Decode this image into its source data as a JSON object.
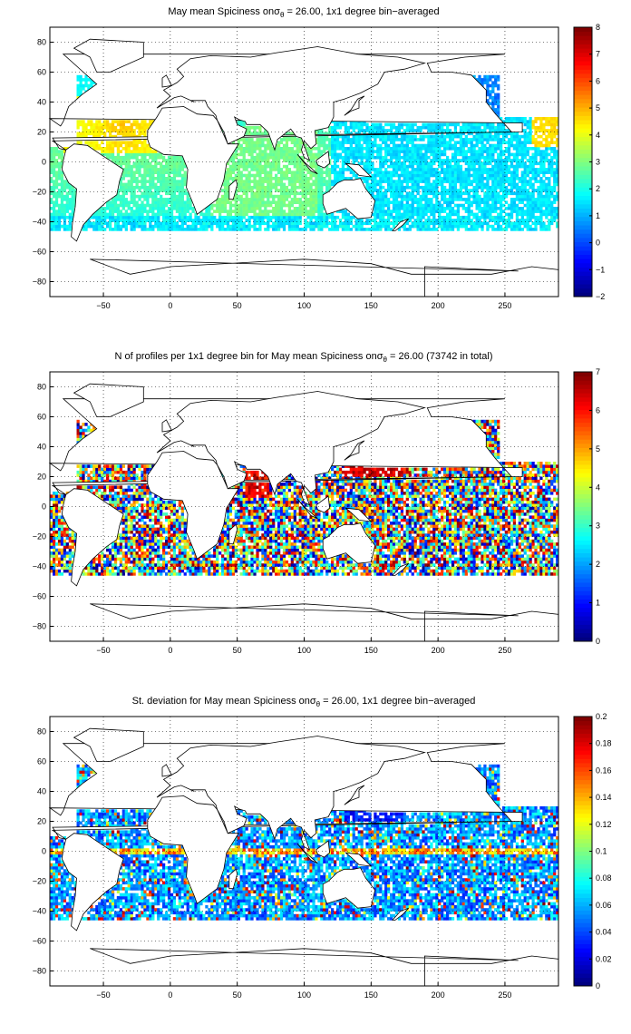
{
  "chart_data": [
    {
      "type": "heatmap",
      "title_prefix": "May mean Spiciness on",
      "title_symbol": "σ",
      "title_subscript": "θ",
      "title_suffix": " = 26.00, 1x1 degree bin−averaged",
      "x_ticks": [
        "−50",
        "0",
        "50",
        "100",
        "150",
        "200",
        "250"
      ],
      "x_tick_values": [
        -50,
        0,
        50,
        100,
        150,
        200,
        250
      ],
      "y_ticks": [
        "80",
        "60",
        "40",
        "20",
        "0",
        "−20",
        "−40",
        "−60",
        "−80"
      ],
      "y_tick_values": [
        80,
        60,
        40,
        20,
        0,
        -20,
        -40,
        -60,
        -80
      ],
      "xlim": [
        -90,
        290
      ],
      "ylim": [
        -90,
        90
      ],
      "grid": true,
      "colorbar": {
        "ticks": [
          "8",
          "7",
          "6",
          "5",
          "4",
          "3",
          "2",
          "1",
          "0",
          "−1",
          "−2"
        ],
        "tick_values": [
          8,
          7,
          6,
          5,
          4,
          3,
          2,
          1,
          0,
          -1,
          -2
        ],
        "range": [
          -2,
          8
        ],
        "colormap": "jet"
      }
    },
    {
      "type": "heatmap",
      "title_prefix": "N of profiles per 1x1 degree bin for May mean Spiciness on",
      "title_symbol": "σ",
      "title_subscript": "θ",
      "title_suffix": " = 26.00 (73742 in total)",
      "x_ticks": [
        "−50",
        "0",
        "50",
        "100",
        "150",
        "200",
        "250"
      ],
      "x_tick_values": [
        -50,
        0,
        50,
        100,
        150,
        200,
        250
      ],
      "y_ticks": [
        "80",
        "60",
        "40",
        "20",
        "0",
        "−20",
        "−40",
        "−60",
        "−80"
      ],
      "y_tick_values": [
        80,
        60,
        40,
        20,
        0,
        -20,
        -40,
        -60,
        -80
      ],
      "xlim": [
        -90,
        290
      ],
      "ylim": [
        -90,
        90
      ],
      "grid": true,
      "colorbar": {
        "ticks": [
          "7",
          "6",
          "5",
          "4",
          "3",
          "2",
          "1",
          "0"
        ],
        "tick_values": [
          7,
          6,
          5,
          4,
          3,
          2,
          1,
          0
        ],
        "range": [
          0,
          7
        ],
        "colormap": "jet"
      }
    },
    {
      "type": "heatmap",
      "title_prefix": "St. deviation for May mean Spiciness on",
      "title_symbol": "σ",
      "title_subscript": "θ",
      "title_suffix": " = 26.00, 1x1 degree bin−averaged",
      "x_ticks": [
        "−50",
        "0",
        "50",
        "100",
        "150",
        "200",
        "250"
      ],
      "x_tick_values": [
        -50,
        0,
        50,
        100,
        150,
        200,
        250
      ],
      "y_ticks": [
        "80",
        "60",
        "40",
        "20",
        "0",
        "−20",
        "−40",
        "−60",
        "−80"
      ],
      "y_tick_values": [
        80,
        60,
        40,
        20,
        0,
        -20,
        -40,
        -60,
        -80
      ],
      "xlim": [
        -90,
        290
      ],
      "ylim": [
        -90,
        90
      ],
      "grid": true,
      "colorbar": {
        "ticks": [
          "0.2",
          "0.18",
          "0.16",
          "0.14",
          "0.12",
          "0.1",
          "0.08",
          "0.06",
          "0.04",
          "0.02",
          "0"
        ],
        "tick_values": [
          0.2,
          0.18,
          0.16,
          0.14,
          0.12,
          0.1,
          0.08,
          0.06,
          0.04,
          0.02,
          0
        ],
        "range": [
          0,
          0.2
        ],
        "colormap": "jet"
      }
    }
  ]
}
